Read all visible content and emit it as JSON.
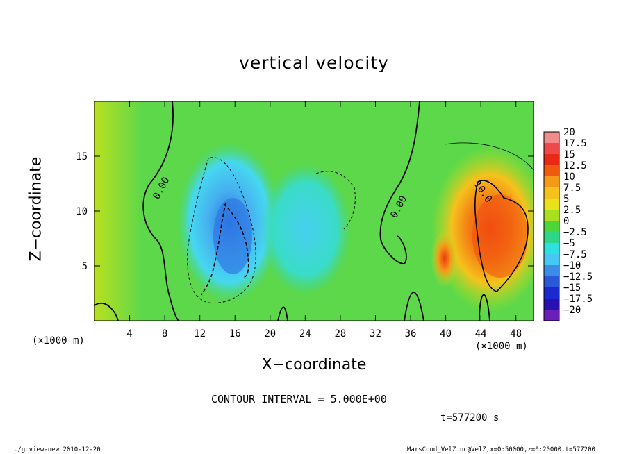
{
  "chart_data": {
    "type": "heatmap",
    "title": "vertical velocity",
    "xlabel": "X−coordinate",
    "ylabel": "Z−coordinate",
    "x_unit": "(×1000 m)",
    "xlim": [
      0,
      50
    ],
    "ylim": [
      0,
      20
    ],
    "x_ticks": [
      4,
      8,
      12,
      16,
      20,
      24,
      28,
      32,
      36,
      40,
      44,
      48
    ],
    "y_ticks": [
      5,
      10,
      15
    ],
    "colorbar": {
      "levels": [
        "20",
        "17.5",
        "15",
        "12.5",
        "10",
        "7.5",
        "5",
        "2.5",
        "0",
        "−2.5",
        "−5",
        "−7.5",
        "−10",
        "−12.5",
        "−15",
        "−17.5",
        "−20"
      ],
      "colors": [
        "#f28b8b",
        "#ee4a4a",
        "#e82a14",
        "#ef5a10",
        "#f59a18",
        "#f5c21c",
        "#e8e21c",
        "#a8e020",
        "#4cd63a",
        "#2ed68a",
        "#2ee0e0",
        "#46c8f5",
        "#3a8ee8",
        "#2a58d8",
        "#1a2ad0",
        "#2a10b0",
        "#6a20b8"
      ]
    },
    "contour_labels": [
      "0.00",
      "0.00",
      "10.0"
    ],
    "contour_interval_text": "CONTOUR INTERVAL = 5.000E+00",
    "time": "t=577200 s",
    "features": [
      {
        "kind": "updraft",
        "x": 46,
        "z": 8,
        "w": 14
      },
      {
        "kind": "updraft",
        "x": 40,
        "z": 6.5,
        "w": 11
      },
      {
        "kind": "downdraft",
        "x": 16,
        "z": 8,
        "w": -11
      },
      {
        "kind": "downdraft",
        "x": 25,
        "z": 9,
        "w": -6
      }
    ]
  },
  "footer": {
    "left": "./gpview-new   2010-12-20",
    "right": "MarsCond_VelZ.nc@VelZ,x=0:50000,z=0:20000,t=577200"
  }
}
